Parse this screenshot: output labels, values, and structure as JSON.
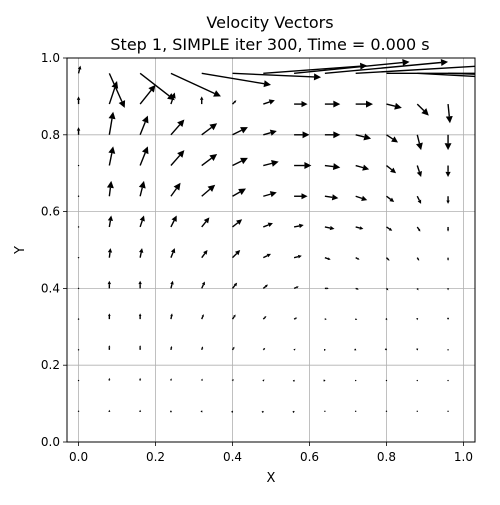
{
  "chart_data": {
    "type": "quiver",
    "title": "Velocity Vectors",
    "subtitle": "Step 1, SIMPLE iter 300, Time = 0.000 s",
    "xlabel": "X",
    "ylabel": "Y",
    "xlim": [
      -0.03,
      1.03
    ],
    "ylim": [
      0.0,
      1.0
    ],
    "xticks": [
      "0.0",
      "0.2",
      "0.4",
      "0.6",
      "0.8",
      "1.0"
    ],
    "yticks": [
      "0.0",
      "0.2",
      "0.4",
      "0.6",
      "0.8",
      "1.0"
    ],
    "grid": true,
    "arrow_color": "#000000",
    "grid_x": [
      0.0,
      0.08,
      0.16,
      0.24,
      0.32,
      0.4,
      0.48,
      0.56,
      0.64,
      0.72,
      0.8,
      0.88,
      0.96
    ],
    "grid_y": [
      0.08,
      0.16,
      0.24,
      0.32,
      0.4,
      0.48,
      0.56,
      0.64,
      0.72,
      0.8,
      0.88,
      0.96
    ],
    "vectors": {
      "0.96": [
        [
          0.005,
          0.02
        ],
        [
          0.04,
          -0.09
        ],
        [
          0.09,
          -0.07
        ],
        [
          0.13,
          -0.06
        ],
        [
          0.18,
          -0.03
        ],
        [
          0.23,
          -0.01
        ],
        [
          0.27,
          0.02
        ],
        [
          0.3,
          0.03
        ],
        [
          0.32,
          0.03
        ],
        [
          0.34,
          0.02
        ],
        [
          0.35,
          0.0
        ],
        [
          0.37,
          -0.02
        ],
        [
          0.35,
          -0.01
        ]
      ],
      "0.88": [
        [
          0.0,
          0.02
        ],
        [
          0.02,
          0.06
        ],
        [
          0.04,
          0.05
        ],
        [
          0.01,
          0.03
        ],
        [
          0.0,
          0.02
        ],
        [
          0.01,
          0.01
        ],
        [
          0.03,
          0.01
        ],
        [
          0.035,
          0.0
        ],
        [
          0.04,
          0.0
        ],
        [
          0.045,
          0.0
        ],
        [
          0.04,
          -0.01
        ],
        [
          0.03,
          -0.03
        ],
        [
          0.005,
          -0.05
        ]
      ],
      "0.80": [
        [
          0.0,
          0.02
        ],
        [
          0.01,
          0.06
        ],
        [
          0.02,
          0.05
        ],
        [
          0.035,
          0.04
        ],
        [
          0.04,
          0.03
        ],
        [
          0.04,
          0.02
        ],
        [
          0.035,
          0.01
        ],
        [
          0.04,
          0.0
        ],
        [
          0.04,
          0.0
        ],
        [
          0.04,
          -0.01
        ],
        [
          0.03,
          -0.02
        ],
        [
          0.01,
          -0.04
        ],
        [
          0.0,
          -0.04
        ]
      ],
      "0.72": [
        [
          0.0,
          0.0
        ],
        [
          0.01,
          0.05
        ],
        [
          0.02,
          0.05
        ],
        [
          0.035,
          0.04
        ],
        [
          0.04,
          0.03
        ],
        [
          0.04,
          0.02
        ],
        [
          0.04,
          0.01
        ],
        [
          0.045,
          0.0
        ],
        [
          0.04,
          -0.005
        ],
        [
          0.035,
          -0.01
        ],
        [
          0.025,
          -0.02
        ],
        [
          0.01,
          -0.03
        ],
        [
          0.0,
          -0.03
        ]
      ],
      "0.64": [
        [
          0.0,
          0.0
        ],
        [
          0.005,
          0.04
        ],
        [
          0.01,
          0.04
        ],
        [
          0.025,
          0.035
        ],
        [
          0.035,
          0.03
        ],
        [
          0.035,
          0.02
        ],
        [
          0.035,
          0.01
        ],
        [
          0.035,
          0.0
        ],
        [
          0.035,
          -0.005
        ],
        [
          0.03,
          -0.01
        ],
        [
          0.02,
          -0.015
        ],
        [
          0.01,
          -0.02
        ],
        [
          0.0,
          -0.02
        ]
      ],
      "0.56": [
        [
          0.0,
          0.0
        ],
        [
          0.005,
          0.03
        ],
        [
          0.01,
          0.03
        ],
        [
          0.015,
          0.03
        ],
        [
          0.02,
          0.025
        ],
        [
          0.025,
          0.02
        ],
        [
          0.025,
          0.01
        ],
        [
          0.025,
          0.005
        ],
        [
          0.025,
          -0.005
        ],
        [
          0.02,
          -0.005
        ],
        [
          0.015,
          -0.01
        ],
        [
          0.008,
          -0.012
        ],
        [
          0.0,
          -0.012
        ]
      ],
      "0.48": [
        [
          0.0,
          0.0
        ],
        [
          0.003,
          0.025
        ],
        [
          0.005,
          0.025
        ],
        [
          0.01,
          0.025
        ],
        [
          0.015,
          0.02
        ],
        [
          0.02,
          0.02
        ],
        [
          0.02,
          0.01
        ],
        [
          0.02,
          0.005
        ],
        [
          0.015,
          -0.005
        ],
        [
          0.01,
          -0.005
        ],
        [
          0.008,
          -0.008
        ],
        [
          0.005,
          -0.008
        ],
        [
          0.0,
          -0.008
        ]
      ],
      "0.40": [
        [
          0.0,
          0.0
        ],
        [
          0.0,
          0.02
        ],
        [
          0.0,
          0.02
        ],
        [
          0.005,
          0.02
        ],
        [
          0.008,
          0.018
        ],
        [
          0.012,
          0.015
        ],
        [
          0.012,
          0.01
        ],
        [
          0.012,
          0.005
        ],
        [
          0.01,
          0.0
        ],
        [
          0.008,
          -0.003
        ],
        [
          0.005,
          -0.005
        ],
        [
          0.003,
          -0.005
        ],
        [
          0.0,
          -0.005
        ]
      ],
      "0.32": [
        [
          0.0,
          0.0
        ],
        [
          0.0,
          0.015
        ],
        [
          0.0,
          0.015
        ],
        [
          0.003,
          0.015
        ],
        [
          0.005,
          0.013
        ],
        [
          0.008,
          0.012
        ],
        [
          0.008,
          0.008
        ],
        [
          0.008,
          0.004
        ],
        [
          0.005,
          0.0
        ],
        [
          0.004,
          -0.002
        ],
        [
          0.002,
          -0.003
        ],
        [
          0.0,
          -0.003
        ],
        [
          0.0,
          -0.002
        ]
      ],
      "0.24": [
        [
          0.0,
          0.0
        ],
        [
          0.0,
          0.012
        ],
        [
          0.0,
          0.012
        ],
        [
          0.002,
          0.01
        ],
        [
          0.003,
          0.009
        ],
        [
          0.005,
          0.008
        ],
        [
          0.005,
          0.005
        ],
        [
          0.004,
          0.003
        ],
        [
          0.003,
          0.0
        ],
        [
          0.002,
          -0.001
        ],
        [
          0.001,
          -0.001
        ],
        [
          0.0,
          -0.002
        ],
        [
          0.0,
          -0.001
        ]
      ],
      "0.16": [
        [
          0.0,
          0.0
        ],
        [
          0.0,
          0.007
        ],
        [
          0.0,
          0.007
        ],
        [
          0.001,
          0.006
        ],
        [
          0.002,
          0.005
        ],
        [
          0.003,
          0.004
        ],
        [
          0.003,
          0.003
        ],
        [
          0.002,
          0.002
        ],
        [
          0.002,
          0.0
        ],
        [
          0.001,
          0.0
        ],
        [
          0.0,
          0.0
        ],
        [
          0.0,
          -0.001
        ],
        [
          0.0,
          0.0
        ]
      ],
      "0.08": [
        [
          0.0,
          0.0
        ],
        [
          0.0,
          0.004
        ],
        [
          0.0,
          0.004
        ],
        [
          0.0,
          0.003
        ],
        [
          0.001,
          0.003
        ],
        [
          0.001,
          0.002
        ],
        [
          0.001,
          0.001
        ],
        [
          0.001,
          0.001
        ],
        [
          0.001,
          0.0
        ],
        [
          0.0,
          0.0
        ],
        [
          0.0,
          0.0
        ],
        [
          0.0,
          0.0
        ],
        [
          0.0,
          0.0
        ]
      ]
    }
  }
}
